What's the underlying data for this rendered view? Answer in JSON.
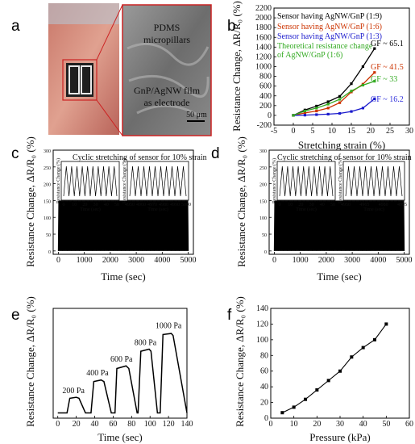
{
  "panel_labels": [
    "a",
    "b",
    "c",
    "d",
    "e",
    "f"
  ],
  "panel_a": {
    "callout_top": [
      "PDMS",
      "micropillars"
    ],
    "callout_bottom": [
      "GnP/AgNW film",
      "as electrode"
    ],
    "scale_bar": "50 μm"
  },
  "colors": {
    "black": "#000000",
    "red": "#cc3300",
    "blue": "#1a1acc",
    "green": "#33aa22",
    "orange": "#d98c1a",
    "purple": "#7722cc",
    "blue_text": "#3333dd"
  },
  "chart_data": [
    {
      "panel": "b",
      "type": "line",
      "xlabel": "Stretching strain (%)",
      "ylabel": "Resistance Change, ΔR/R₀ (%)",
      "xlim": [
        -5,
        30
      ],
      "ylim": [
        -200,
        2200
      ],
      "xticks": [
        "-5",
        "0",
        "5",
        "10",
        "15",
        "20",
        "25",
        "30"
      ],
      "yticks": [
        "-200",
        "0",
        "200",
        "400",
        "600",
        "800",
        "1000",
        "1200",
        "1400",
        "1600",
        "1800",
        "2000",
        "2200"
      ],
      "legend_position": "top-left",
      "series": [
        {
          "name": "Sensor having AgNW/GnP (1:9)",
          "color": "#000000",
          "x": [
            0,
            3,
            6,
            9,
            12,
            15,
            18,
            21
          ],
          "y": [
            0,
            110,
            190,
            280,
            390,
            650,
            1000,
            1370
          ]
        },
        {
          "name": "Sensor having AgNW/GnP (1:6)",
          "color": "#cc3300",
          "x": [
            0,
            3,
            6,
            9,
            12,
            15,
            18,
            21
          ],
          "y": [
            0,
            50,
            90,
            150,
            260,
            480,
            640,
            880
          ]
        },
        {
          "name": "Sensor having AgNW/GnP (1:3)",
          "color": "#1a1acc",
          "x": [
            0,
            3,
            6,
            9,
            12,
            15,
            18,
            21
          ],
          "y": [
            0,
            5,
            15,
            25,
            40,
            80,
            150,
            340
          ]
        },
        {
          "name": "Theoretical resistance change of AgNW/GnP (1:6)",
          "color": "#33aa22",
          "x": [
            0,
            3,
            6,
            9,
            12,
            15,
            18,
            21
          ],
          "y": [
            0,
            90,
            150,
            230,
            330,
            500,
            620,
            700
          ]
        }
      ],
      "annotations": [
        {
          "text": "GF ~ 65.1",
          "color": "#000000"
        },
        {
          "text": "GF ~ 41.5",
          "color": "#cc3300"
        },
        {
          "text": "GF ~ 33",
          "color": "#33aa22"
        },
        {
          "text": "GF ~ 16.2",
          "color": "#3333dd"
        }
      ]
    },
    {
      "panel": "c",
      "type": "line",
      "title": "Cyclic stretching of sensor for 10% strain",
      "xlabel": "Time (sec)",
      "ylabel": "Resistance Change, ΔR/R₀ (%)",
      "xlim": [
        -200,
        5200
      ],
      "ylim": [
        -10,
        300
      ],
      "xticks": [
        "0",
        "1000",
        "2000",
        "3000",
        "4000",
        "5000"
      ],
      "yticks": [
        "0",
        "50",
        "100",
        "150",
        "200",
        "250",
        "300"
      ],
      "description": "Continuous cycling between 0 and ~150 over 0–5000 s",
      "inset_left": {
        "xticks": [
          "0",
          "10",
          "20",
          "30",
          "40",
          "50"
        ],
        "xlabel": "Time (sec)",
        "ylabel": "Resistance Change (%)",
        "cycles": 10
      },
      "inset_right": {
        "xticks": [
          "4950",
          "4960",
          "4970",
          "4980",
          "4990",
          "5000"
        ],
        "xlabel": "Time (sec)",
        "ylabel": "Resistance Change (%)",
        "cycles": 10
      }
    },
    {
      "panel": "d",
      "type": "line",
      "title": "Cyclic stretching of sensor for 10% strain",
      "xlabel": "Time (sec)",
      "ylabel": "Resistance Change, ΔR/R₀ (%)",
      "xlim": [
        -200,
        5200
      ],
      "ylim": [
        -10,
        300
      ],
      "xticks": [
        "0",
        "1000",
        "2000",
        "3000",
        "4000",
        "5000"
      ],
      "yticks": [
        "0",
        "50",
        "100",
        "150",
        "200",
        "250",
        "300"
      ],
      "description": "Continuous cycling between 0 and ~150 over 0–5000 s",
      "inset_left": {
        "xticks": [
          "0",
          "10",
          "20",
          "30",
          "40",
          "50"
        ],
        "xlabel": "Time (sec)",
        "ylabel": "Resistance Change (%)",
        "cycles": 10
      },
      "inset_right": {
        "xticks": [
          "4950",
          "4965",
          "4980",
          "4995"
        ],
        "xlabel": "Time (sec)",
        "ylabel": "Resistance Change (%)",
        "cycles": 10
      }
    },
    {
      "panel": "e",
      "type": "line",
      "xlabel": "Time (sec)",
      "ylabel": "Resistance Change, ΔR/R₀ (%)",
      "xlim": [
        -5,
        140
      ],
      "ylim": [
        -0.1,
        2.0
      ],
      "xticks": [
        "0",
        "20",
        "40",
        "60",
        "80",
        "100",
        "120",
        "140"
      ],
      "x": [
        0,
        10,
        13,
        20,
        23,
        30,
        36,
        39,
        47,
        50,
        58,
        62,
        64,
        74,
        77,
        86,
        87,
        90,
        99,
        101,
        108,
        111,
        114,
        123,
        125,
        140
      ],
      "y": [
        0,
        0,
        0.28,
        0.3,
        0.28,
        0,
        0,
        0.6,
        0.63,
        0.6,
        0,
        0,
        0.85,
        0.9,
        0.85,
        0,
        0,
        1.18,
        1.22,
        1.18,
        0,
        0,
        1.5,
        1.52,
        1.48,
        0
      ],
      "labels": [
        "200 Pa",
        "400 Pa",
        "600 Pa",
        "800 Pa",
        "1000 Pa"
      ]
    },
    {
      "panel": "f",
      "type": "line",
      "xlabel": "Pressure (kPa)",
      "ylabel": "Resistance Change, ΔR/R₀ (%)",
      "xlim": [
        0,
        60
      ],
      "ylim": [
        0,
        140
      ],
      "xticks": [
        "0",
        "10",
        "20",
        "30",
        "40",
        "50",
        "60"
      ],
      "yticks": [
        "0",
        "20",
        "40",
        "60",
        "80",
        "100",
        "120",
        "140"
      ],
      "x": [
        5,
        10,
        15,
        20,
        25,
        30,
        35,
        40,
        45,
        50
      ],
      "y": [
        7,
        14,
        24,
        36,
        48,
        60,
        78,
        90,
        100,
        120
      ]
    }
  ]
}
